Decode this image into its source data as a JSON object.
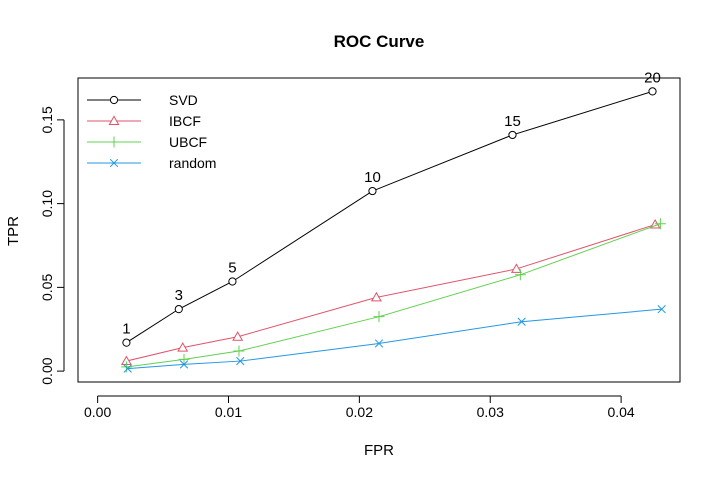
{
  "chart_data": {
    "type": "line",
    "title": "ROC Curve",
    "xlabel": "FPR",
    "ylabel": "TPR",
    "xlim": [
      -0.0015,
      0.0445
    ],
    "ylim": [
      -0.0065,
      0.175
    ],
    "xticks": [
      0.0,
      0.01,
      0.02,
      0.03,
      0.04
    ],
    "xtick_labels": [
      "0.00",
      "0.01",
      "0.02",
      "0.03",
      "0.04"
    ],
    "yticks": [
      0.0,
      0.05,
      0.1,
      0.15
    ],
    "ytick_labels": [
      "0.00",
      "0.05",
      "0.10",
      "0.15"
    ],
    "grid": false,
    "legend_position": "top-left",
    "point_labels": [
      "1",
      "3",
      "5",
      "10",
      "15",
      "20"
    ],
    "series": [
      {
        "name": "SVD",
        "color": "#000000",
        "marker": "circle",
        "x": [
          0.0022,
          0.0062,
          0.0103,
          0.021,
          0.0317,
          0.0424
        ],
        "y": [
          0.017,
          0.037,
          0.0535,
          0.1075,
          0.141,
          0.167
        ]
      },
      {
        "name": "IBCF",
        "color": "#DF536B",
        "marker": "triangle",
        "x": [
          0.0022,
          0.0065,
          0.0107,
          0.0213,
          0.032,
          0.0426
        ],
        "y": [
          0.006,
          0.014,
          0.0205,
          0.044,
          0.061,
          0.0875
        ]
      },
      {
        "name": "UBCF",
        "color": "#61D04F",
        "marker": "plus",
        "x": [
          0.0022,
          0.0066,
          0.0108,
          0.0215,
          0.0323,
          0.043
        ],
        "y": [
          0.0025,
          0.007,
          0.012,
          0.0325,
          0.0575,
          0.088
        ]
      },
      {
        "name": "random",
        "color": "#2297E6",
        "marker": "cross",
        "x": [
          0.0023,
          0.0066,
          0.0109,
          0.0215,
          0.0324,
          0.0431
        ],
        "y": [
          0.0015,
          0.004,
          0.006,
          0.0165,
          0.0295,
          0.037
        ]
      }
    ]
  }
}
